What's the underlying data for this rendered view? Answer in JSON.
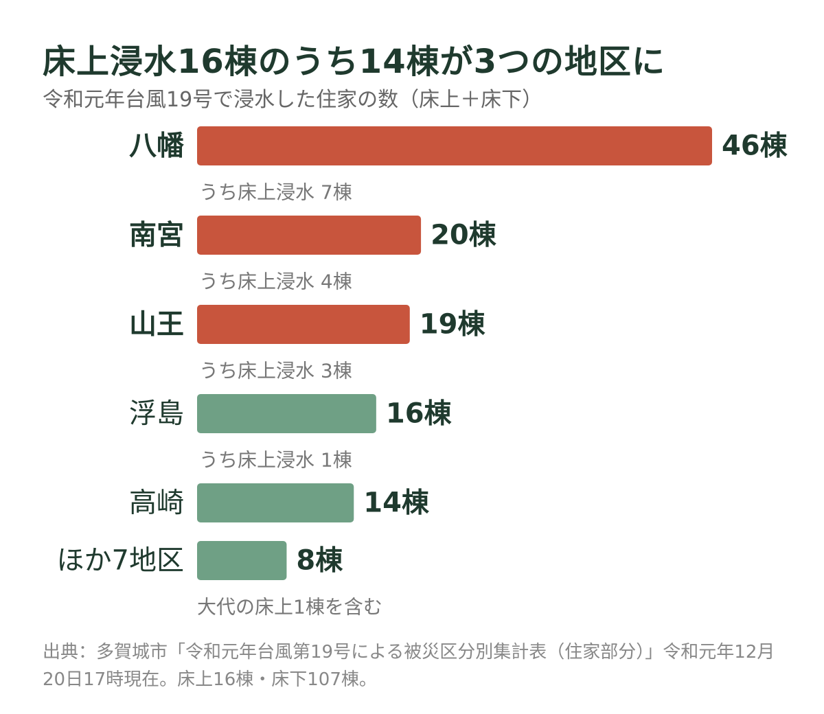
{
  "title": "床上浸水16棟のうち14棟が3つの地区に",
  "subtitle": "令和元年台風19号で浸水した住家の数（床上＋床下）",
  "source": "出典：多賀城市「令和元年台風第19号による被災区分別集計表（住家部分）」令和元年12月20日17時現在。床上16棟・床下107棟。",
  "colors": {
    "highlight": "#c8553d",
    "other": "#6fa085",
    "text": "#1f3a2e",
    "note": "#777777"
  },
  "chart_data": {
    "type": "bar",
    "orientation": "horizontal",
    "title": "床上浸水16棟のうち14棟が3つの地区に",
    "subtitle": "令和元年台風19号で浸水した住家の数（床上＋床下）",
    "categories": [
      "八幡",
      "南宮",
      "山王",
      "浮島",
      "高崎",
      "ほか7地区"
    ],
    "values": [
      46,
      20,
      19,
      16,
      14,
      8
    ],
    "value_labels": [
      "46棟",
      "20棟",
      "19棟",
      "16棟",
      "14棟",
      "8棟"
    ],
    "notes": [
      "うち床上浸水 7棟",
      "うち床上浸水 4棟",
      "うち床上浸水 3棟",
      "うち床上浸水 1棟",
      "",
      "大代の床上1棟を含む"
    ],
    "highlighted": [
      true,
      true,
      true,
      false,
      false,
      false
    ],
    "xlim": [
      0,
      46
    ],
    "grid": false,
    "legend": "none"
  }
}
